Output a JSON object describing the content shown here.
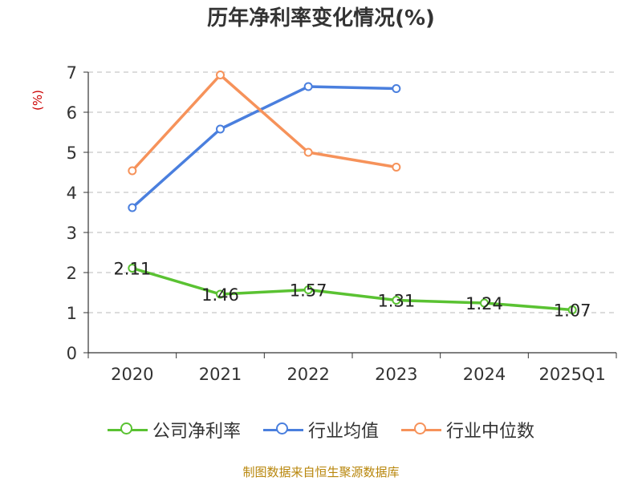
{
  "chart_data": {
    "type": "line",
    "title": "历年净利率变化情况(%)",
    "ylabel": "(%)",
    "xlabel": "",
    "categories": [
      "2020",
      "2021",
      "2022",
      "2023",
      "2024",
      "2025Q1"
    ],
    "y_ticks": [
      "0",
      "1",
      "2",
      "3",
      "4",
      "5",
      "6",
      "7"
    ],
    "ylim": [
      0,
      7
    ],
    "grid": true,
    "legend_position": "bottom",
    "series": [
      {
        "name": "公司净利率",
        "color": "#5ac232",
        "values": [
          2.11,
          1.46,
          1.57,
          1.31,
          1.24,
          1.07
        ],
        "labels": [
          "2.11",
          "1.46",
          "1.57",
          "1.31",
          "1.24",
          "1.07"
        ]
      },
      {
        "name": "行业均值",
        "color": "#4a7fde",
        "values": [
          3.62,
          5.58,
          6.64,
          6.59,
          null,
          null
        ]
      },
      {
        "name": "行业中位数",
        "color": "#f6925a",
        "values": [
          4.54,
          6.93,
          5.0,
          4.63,
          null,
          null
        ]
      }
    ]
  },
  "source": "制图数据来自恒生聚源数据库"
}
